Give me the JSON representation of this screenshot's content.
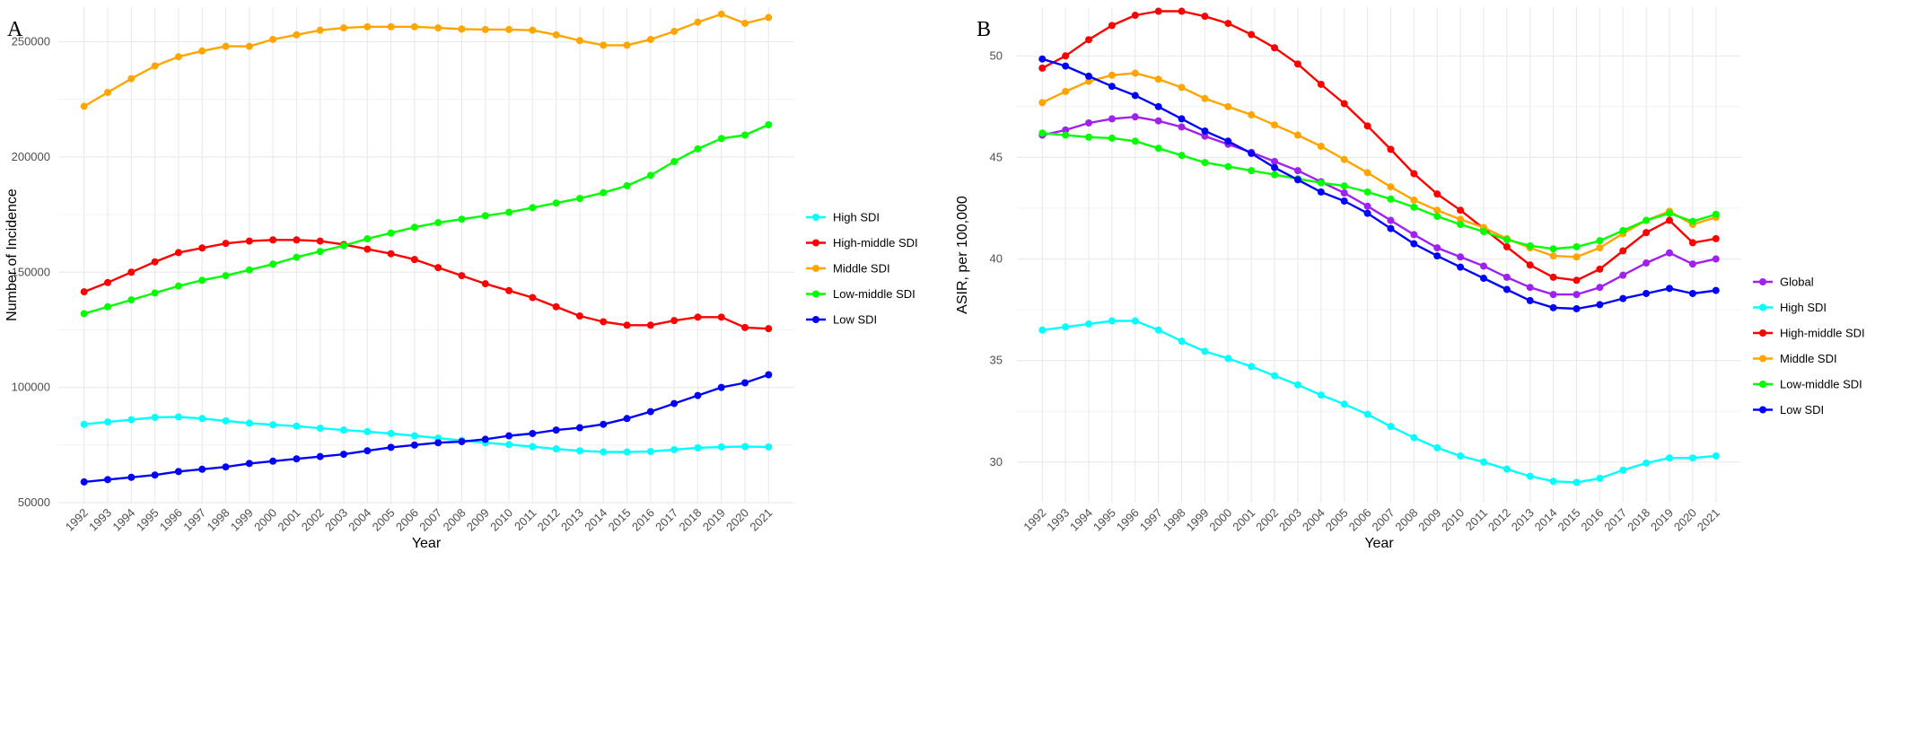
{
  "chart_data": [
    {
      "panel_label": "A",
      "type": "line",
      "xlabel": "Year",
      "ylabel": "Number of Incidence",
      "ylim": [
        50000,
        265000
      ],
      "y_ticks": [
        50000,
        100000,
        150000,
        200000,
        250000
      ],
      "grid": true,
      "legend_position": "right",
      "x": [
        "1992",
        "1993",
        "1994",
        "1995",
        "1996",
        "1997",
        "1998",
        "1999",
        "2000",
        "2001",
        "2002",
        "2003",
        "2004",
        "2005",
        "2006",
        "2007",
        "2008",
        "2009",
        "2010",
        "2011",
        "2012",
        "2013",
        "2014",
        "2015",
        "2016",
        "2017",
        "2018",
        "2019",
        "2020",
        "2021"
      ],
      "series": [
        {
          "name": "High SDI",
          "color": "#00FFFF",
          "values": [
            84000,
            85000,
            86000,
            87000,
            87200,
            86500,
            85500,
            84500,
            83800,
            83200,
            82300,
            81500,
            80800,
            80000,
            79000,
            78000,
            77000,
            76000,
            75200,
            74300,
            73300,
            72500,
            72000,
            72000,
            72200,
            73000,
            73800,
            74200,
            74300,
            74200
          ]
        },
        {
          "name": "High-middle SDI",
          "color": "#FF0000",
          "values": [
            141500,
            145500,
            150000,
            154500,
            158500,
            160500,
            162500,
            163500,
            164000,
            164000,
            163500,
            162000,
            160000,
            158000,
            155500,
            152000,
            148500,
            145000,
            142000,
            139000,
            135000,
            131000,
            128500,
            127000,
            127000,
            129000,
            130500,
            130500,
            126000,
            125500
          ]
        },
        {
          "name": "Middle SDI",
          "color": "#FFA500",
          "values": [
            222000,
            228000,
            234000,
            239500,
            243500,
            246000,
            248000,
            248000,
            251000,
            253000,
            255000,
            256000,
            256500,
            256500,
            256500,
            256000,
            255500,
            255300,
            255300,
            255000,
            253000,
            250500,
            248500,
            248500,
            251000,
            254500,
            258500,
            262000,
            258000,
            260500
          ]
        },
        {
          "name": "Low-middle SDI",
          "color": "#00FF00",
          "values": [
            132000,
            135000,
            138000,
            141000,
            144000,
            146500,
            148500,
            151000,
            153500,
            156500,
            159000,
            161500,
            164500,
            167000,
            169500,
            171500,
            173000,
            174500,
            176000,
            178000,
            180000,
            182000,
            184500,
            187500,
            192000,
            198000,
            203500,
            208000,
            209500,
            214000
          ]
        },
        {
          "name": "Low SDI",
          "color": "#0000FF",
          "values": [
            59000,
            60000,
            61000,
            62000,
            63500,
            64500,
            65500,
            67000,
            68000,
            69000,
            70000,
            71000,
            72500,
            74000,
            75000,
            76000,
            76500,
            77500,
            79000,
            80000,
            81500,
            82500,
            84000,
            86500,
            89500,
            93000,
            96500,
            100000,
            102000,
            105500
          ]
        }
      ]
    },
    {
      "panel_label": "B",
      "type": "line",
      "xlabel": "Year",
      "ylabel": "ASIR, per 100,000",
      "ylim": [
        28,
        52.4
      ],
      "y_ticks": [
        30,
        35,
        40,
        45,
        50
      ],
      "grid": true,
      "legend_position": "right",
      "x": [
        "1992",
        "1993",
        "1994",
        "1995",
        "1996",
        "1997",
        "1998",
        "1999",
        "2000",
        "2001",
        "2002",
        "2003",
        "2004",
        "2005",
        "2006",
        "2007",
        "2008",
        "2009",
        "2010",
        "2011",
        "2012",
        "2013",
        "2014",
        "2015",
        "2016",
        "2017",
        "2018",
        "2019",
        "2020",
        "2021"
      ],
      "series": [
        {
          "name": "Global",
          "color": "#A020F0",
          "values": [
            46.1,
            46.35,
            46.7,
            46.9,
            47.0,
            46.8,
            46.5,
            46.05,
            45.65,
            45.25,
            44.8,
            44.35,
            43.8,
            43.25,
            42.6,
            41.9,
            41.2,
            40.55,
            40.1,
            39.65,
            39.1,
            38.6,
            38.25,
            38.25,
            38.6,
            39.2,
            39.8,
            40.3,
            39.75,
            40.0
          ]
        },
        {
          "name": "High SDI",
          "color": "#00FFFF",
          "values": [
            36.5,
            36.65,
            36.8,
            36.95,
            36.95,
            36.5,
            35.95,
            35.45,
            35.1,
            34.7,
            34.25,
            33.8,
            33.3,
            32.85,
            32.35,
            31.75,
            31.2,
            30.7,
            30.3,
            30.0,
            29.65,
            29.3,
            29.05,
            29.0,
            29.2,
            29.6,
            29.95,
            30.2,
            30.2,
            30.3
          ]
        },
        {
          "name": "High-middle SDI",
          "color": "#FF0000",
          "values": [
            49.4,
            50.0,
            50.8,
            51.5,
            52.0,
            52.2,
            52.2,
            51.95,
            51.6,
            51.05,
            50.4,
            49.6,
            48.6,
            47.65,
            46.55,
            45.4,
            44.2,
            43.2,
            42.4,
            41.5,
            40.6,
            39.7,
            39.1,
            38.95,
            39.5,
            40.4,
            41.3,
            41.9,
            40.8,
            41.0
          ]
        },
        {
          "name": "Middle SDI",
          "color": "#FFA500",
          "values": [
            47.7,
            48.25,
            48.75,
            49.05,
            49.15,
            48.85,
            48.45,
            47.9,
            47.5,
            47.1,
            46.6,
            46.1,
            45.55,
            44.9,
            44.25,
            43.55,
            42.9,
            42.4,
            41.95,
            41.55,
            41.0,
            40.55,
            40.15,
            40.1,
            40.55,
            41.25,
            41.9,
            42.35,
            41.7,
            42.05
          ]
        },
        {
          "name": "Low-middle SDI",
          "color": "#00FF00",
          "values": [
            46.2,
            46.1,
            46.0,
            45.95,
            45.8,
            45.45,
            45.1,
            44.75,
            44.55,
            44.35,
            44.15,
            43.95,
            43.75,
            43.6,
            43.3,
            42.95,
            42.55,
            42.1,
            41.7,
            41.35,
            40.95,
            40.65,
            40.5,
            40.6,
            40.9,
            41.4,
            41.9,
            42.25,
            41.85,
            42.2
          ]
        },
        {
          "name": "Low SDI",
          "color": "#0000FF",
          "values": [
            49.85,
            49.5,
            49.0,
            48.5,
            48.05,
            47.5,
            46.9,
            46.3,
            45.8,
            45.2,
            44.5,
            43.9,
            43.3,
            42.85,
            42.25,
            41.5,
            40.75,
            40.15,
            39.6,
            39.05,
            38.5,
            37.95,
            37.6,
            37.55,
            37.75,
            38.05,
            38.3,
            38.55,
            38.3,
            38.45
          ]
        }
      ]
    }
  ]
}
